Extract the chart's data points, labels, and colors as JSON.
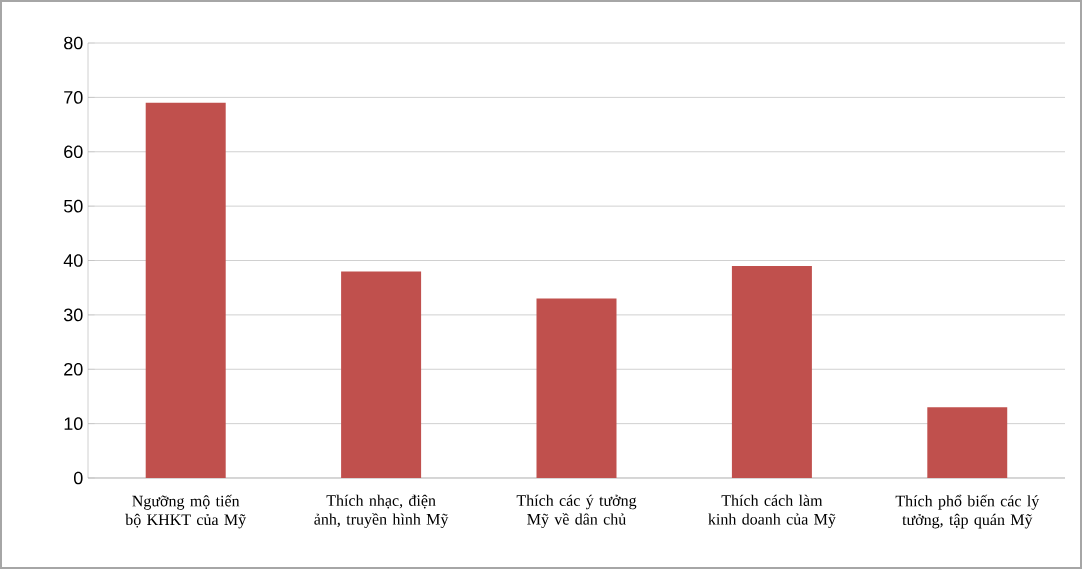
{
  "chart_data": {
    "type": "bar",
    "categories": [
      "Ngưỡng mộ tiến bộ KHKT của Mỹ",
      "Thích nhạc, điện ảnh, truyền hình Mỹ",
      "Thích các ý tưởng Mỹ về dân chủ",
      "Thích cách làm kinh doanh của Mỹ",
      "Thích phổ biến các lý tưởng, tập quán Mỹ"
    ],
    "values": [
      69,
      38,
      33,
      39,
      13
    ],
    "color": "#c0504d",
    "ylim": [
      0,
      80
    ],
    "yticks": [
      0,
      10,
      20,
      30,
      40,
      50,
      60,
      70,
      80
    ],
    "grid": "y"
  }
}
